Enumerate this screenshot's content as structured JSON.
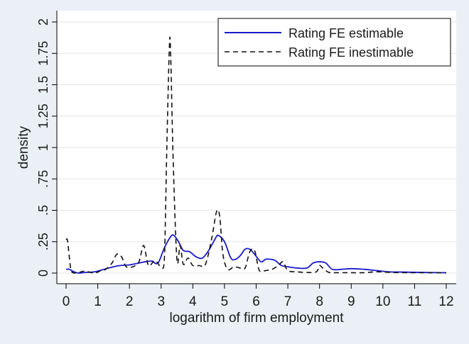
{
  "chart_data": {
    "type": "line",
    "xlabel": "logarithm of firm employment",
    "ylabel": "density",
    "xlim": [
      0,
      12
    ],
    "ylim": [
      0,
      2
    ],
    "x_ticks": [
      0,
      1,
      2,
      3,
      4,
      5,
      6,
      7,
      8,
      9,
      10,
      11,
      12
    ],
    "y_ticks": [
      0,
      0.25,
      0.5,
      0.75,
      1,
      1.25,
      1.5,
      1.75,
      2
    ],
    "y_tick_labels": [
      "0",
      ".25",
      ".5",
      ".75",
      "1",
      "1.25",
      "1.5",
      "1.75",
      "2"
    ],
    "grid": true,
    "legend_position": "top-right",
    "series": [
      {
        "name": "Rating FE estimable",
        "color": "#1a1acc",
        "dash": "solid",
        "x": [
          0.0,
          0.1,
          0.25,
          0.4,
          0.6,
          0.9,
          1.2,
          1.5,
          1.7,
          2.0,
          2.3,
          2.5,
          2.7,
          2.9,
          3.1,
          3.3,
          3.4,
          3.55,
          3.7,
          3.9,
          4.1,
          4.3,
          4.5,
          4.7,
          4.8,
          5.0,
          5.2,
          5.35,
          5.5,
          5.65,
          5.8,
          5.95,
          6.15,
          6.3,
          6.45,
          6.6,
          6.8,
          7.0,
          7.3,
          7.6,
          7.8,
          8.0,
          8.2,
          8.4,
          8.7,
          9.0,
          9.4,
          9.8,
          10.2,
          10.6,
          11.0,
          11.5,
          12.0
        ],
        "y": [
          0.03,
          0.03,
          0.01,
          0.0,
          0.005,
          0.01,
          0.03,
          0.05,
          0.06,
          0.065,
          0.08,
          0.09,
          0.095,
          0.08,
          0.2,
          0.29,
          0.3,
          0.25,
          0.18,
          0.17,
          0.13,
          0.12,
          0.18,
          0.27,
          0.3,
          0.25,
          0.12,
          0.11,
          0.14,
          0.19,
          0.19,
          0.15,
          0.09,
          0.11,
          0.11,
          0.1,
          0.06,
          0.05,
          0.04,
          0.04,
          0.08,
          0.09,
          0.08,
          0.03,
          0.03,
          0.035,
          0.03,
          0.02,
          0.01,
          0.008,
          0.006,
          0.004,
          0.003
        ]
      },
      {
        "name": "Rating FE inestimable",
        "color": "#111111",
        "dash": "dashed",
        "x": [
          0.0,
          0.05,
          0.15,
          0.25,
          0.4,
          0.6,
          0.9,
          1.1,
          1.25,
          1.45,
          1.6,
          1.75,
          1.9,
          2.1,
          2.3,
          2.45,
          2.6,
          2.8,
          3.0,
          3.1,
          3.18,
          3.26,
          3.3,
          3.38,
          3.5,
          3.6,
          3.7,
          3.85,
          4.0,
          4.2,
          4.4,
          4.6,
          4.75,
          4.85,
          4.95,
          5.1,
          5.3,
          5.5,
          5.65,
          5.8,
          5.95,
          6.1,
          6.3,
          6.5,
          6.7,
          6.85,
          7.0,
          7.3,
          7.6,
          7.9,
          8.0,
          8.1,
          8.3,
          8.6,
          9.0,
          9.4,
          9.8,
          10.3,
          10.8,
          11.3,
          12.0
        ],
        "y": [
          0.27,
          0.25,
          0.03,
          0.0,
          0.005,
          0.015,
          0.0,
          0.02,
          0.03,
          0.08,
          0.15,
          0.13,
          0.05,
          0.05,
          0.09,
          0.22,
          0.06,
          0.1,
          0.05,
          0.1,
          1.0,
          1.8,
          1.75,
          0.9,
          0.1,
          0.22,
          0.07,
          0.12,
          0.06,
          0.06,
          0.07,
          0.28,
          0.49,
          0.45,
          0.15,
          0.03,
          0.05,
          0.04,
          0.04,
          0.17,
          0.18,
          0.02,
          0.02,
          0.03,
          0.06,
          0.09,
          0.02,
          0.01,
          0.005,
          0.01,
          0.06,
          0.04,
          0.005,
          0.003,
          0.003,
          0.003,
          0.01,
          0.005,
          0.003,
          0.003,
          0.002
        ]
      }
    ]
  }
}
